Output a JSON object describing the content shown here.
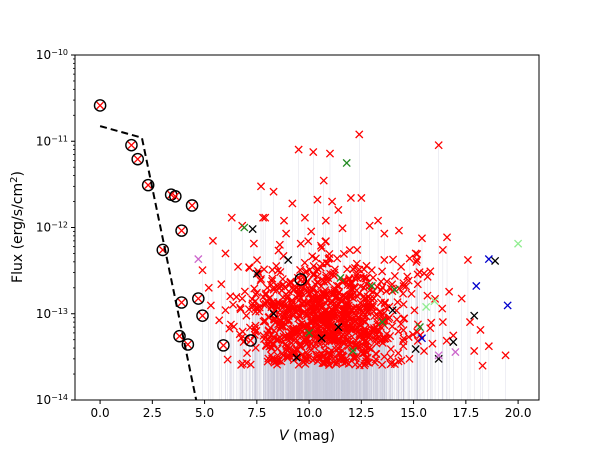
{
  "chart_data": {
    "type": "scatter",
    "xlabel_italic": "V",
    "xlabel_rest": " (mag)",
    "ylabel_main": "Flux (erg/s/cm",
    "ylabel_sup": "2",
    "ylabel_close": ")",
    "xlim": [
      -1.2,
      21.0
    ],
    "ylim": [
      1e-14,
      1e-10
    ],
    "yscale": "log",
    "grid": false,
    "x_ticks": [
      {
        "v": 0.0,
        "label": "0.0"
      },
      {
        "v": 2.5,
        "label": "2.5"
      },
      {
        "v": 5.0,
        "label": "5.0"
      },
      {
        "v": 7.5,
        "label": "7.5"
      },
      {
        "v": 10.0,
        "label": "10.0"
      },
      {
        "v": 12.5,
        "label": "12.5"
      },
      {
        "v": 15.0,
        "label": "15.0"
      },
      {
        "v": 17.5,
        "label": "17.5"
      },
      {
        "v": 20.0,
        "label": "20.0"
      }
    ],
    "y_ticks": [
      {
        "v": 1e-14,
        "base": "10",
        "exp": "−14"
      },
      {
        "v": 1e-13,
        "base": "10",
        "exp": "−13"
      },
      {
        "v": 1e-12,
        "base": "10",
        "exp": "−12"
      },
      {
        "v": 1e-11,
        "base": "10",
        "exp": "−11"
      },
      {
        "v": 1e-10,
        "base": "10",
        "exp": "−10"
      }
    ],
    "colors": {
      "red": "#ff0000",
      "black": "#000000",
      "darkgreen": "#228b22",
      "blue": "#0000cc",
      "violet": "#cc66cc",
      "lightgreen": "#90ee90",
      "errorbar": "#c8c8d8",
      "dashed": "#000000"
    },
    "dashed_line": [
      [
        0.0,
        1.5e-11
      ],
      [
        2.0,
        1.1e-11
      ],
      [
        4.6,
        1e-14
      ]
    ],
    "circled_points": [
      [
        0.0,
        2.6e-11
      ],
      [
        1.5,
        9e-12
      ],
      [
        1.8,
        6.2e-12
      ],
      [
        2.3,
        3.1e-12
      ],
      [
        3.4,
        2.4e-12
      ],
      [
        3.6,
        2.3e-12
      ],
      [
        4.4,
        1.8e-12
      ],
      [
        3.9,
        9.2e-13
      ],
      [
        3.0,
        5.5e-13
      ],
      [
        3.9,
        1.35e-13
      ],
      [
        4.7,
        1.5e-13
      ],
      [
        4.9,
        9.5e-14
      ],
      [
        3.8,
        5.5e-14
      ],
      [
        4.2,
        4.4e-14
      ],
      [
        5.9,
        4.3e-14
      ],
      [
        7.2,
        4.9e-14
      ],
      [
        9.6,
        2.5e-13
      ]
    ],
    "special_points": [
      {
        "c": "darkgreen",
        "x": 11.8,
        "y": 5.6e-12
      },
      {
        "c": "darkgreen",
        "x": 6.9,
        "y": 1e-12
      },
      {
        "c": "darkgreen",
        "x": 11.5,
        "y": 2.6e-13
      },
      {
        "c": "darkgreen",
        "x": 13.0,
        "y": 2.1e-13
      },
      {
        "c": "darkgreen",
        "x": 14.1,
        "y": 1.9e-13
      },
      {
        "c": "darkgreen",
        "x": 13.5,
        "y": 8e-14
      },
      {
        "c": "darkgreen",
        "x": 12.1,
        "y": 3.7e-14
      },
      {
        "c": "darkgreen",
        "x": 15.3,
        "y": 7e-14
      },
      {
        "c": "darkgreen",
        "x": 10.0,
        "y": 6e-14
      },
      {
        "c": "black",
        "x": 7.3,
        "y": 9.6e-13
      },
      {
        "c": "black",
        "x": 9.0,
        "y": 4.2e-13
      },
      {
        "c": "black",
        "x": 7.5,
        "y": 2.9e-13
      },
      {
        "c": "black",
        "x": 8.3,
        "y": 1e-13
      },
      {
        "c": "black",
        "x": 10.6,
        "y": 5.2e-14
      },
      {
        "c": "black",
        "x": 11.4,
        "y": 7e-14
      },
      {
        "c": "black",
        "x": 15.1,
        "y": 3.9e-14
      },
      {
        "c": "black",
        "x": 16.2,
        "y": 3e-14
      },
      {
        "c": "black",
        "x": 16.9,
        "y": 4.7e-14
      },
      {
        "c": "black",
        "x": 17.9,
        "y": 9.5e-14
      },
      {
        "c": "black",
        "x": 18.9,
        "y": 4.1e-13
      },
      {
        "c": "black",
        "x": 14.0,
        "y": 1.1e-13
      },
      {
        "c": "black",
        "x": 9.4,
        "y": 3.1e-14
      },
      {
        "c": "blue",
        "x": 18.6,
        "y": 4.3e-13
      },
      {
        "c": "blue",
        "x": 18.0,
        "y": 2.1e-13
      },
      {
        "c": "blue",
        "x": 19.5,
        "y": 1.25e-13
      },
      {
        "c": "blue",
        "x": 15.4,
        "y": 5.2e-14
      },
      {
        "c": "violet",
        "x": 4.7,
        "y": 4.3e-13
      },
      {
        "c": "violet",
        "x": 17.0,
        "y": 3.6e-14
      },
      {
        "c": "violet",
        "x": 16.2,
        "y": 3.3e-14
      },
      {
        "c": "lightgreen",
        "x": 20.0,
        "y": 6.5e-13
      },
      {
        "c": "lightgreen",
        "x": 16.0,
        "y": 1.4e-13
      },
      {
        "c": "lightgreen",
        "x": 15.6,
        "y": 1.2e-13
      }
    ],
    "red_points": [
      [
        12.4,
        1.2e-11
      ],
      [
        16.2,
        9e-12
      ],
      [
        9.5,
        8e-12
      ],
      [
        10.2,
        7.5e-12
      ],
      [
        11.0,
        7.2e-12
      ],
      [
        7.7,
        3e-12
      ],
      [
        8.3,
        2.6e-12
      ],
      [
        10.4,
        2.1e-12
      ],
      [
        11.1,
        2e-12
      ],
      [
        12.0,
        2.2e-12
      ],
      [
        12.5,
        2.2e-12
      ],
      [
        11.4,
        1.6e-12
      ],
      [
        6.3,
        1.3e-12
      ],
      [
        7.9,
        1.3e-12
      ],
      [
        8.8,
        1.2e-12
      ],
      [
        9.8,
        1.3e-12
      ],
      [
        10.8,
        1.2e-12
      ],
      [
        13.3,
        1.2e-12
      ],
      [
        12.9,
        1.05e-12
      ],
      [
        6.8,
        1.05e-12
      ],
      [
        14.3,
        9.2e-13
      ],
      [
        13.6,
        8.5e-13
      ],
      [
        11.6,
        9.8e-13
      ],
      [
        8.9,
        8.5e-13
      ],
      [
        10.1,
        9e-13
      ],
      [
        15.4,
        7.5e-13
      ],
      [
        16.6,
        7.7e-13
      ],
      [
        17.6,
        4.2e-13
      ],
      [
        16.4,
        5.5e-13
      ],
      [
        15.1,
        5e-13
      ],
      [
        5.4,
        7e-13
      ],
      [
        6.0,
        5e-13
      ],
      [
        5.2,
        2e-13
      ],
      [
        5.8,
        2.2e-13
      ],
      [
        4.9,
        3.2e-13
      ],
      [
        6.6,
        3.5e-13
      ],
      [
        8.6,
        6.3e-13
      ],
      [
        9.6,
        6.5e-13
      ],
      [
        10.6,
        5.8e-13
      ],
      [
        12.3,
        5.5e-13
      ],
      [
        13.6,
        4.2e-13
      ],
      [
        14.4,
        3.5e-13
      ],
      [
        15.8,
        3.1e-13
      ],
      [
        16.7,
        1.8e-13
      ],
      [
        17.3,
        1.5e-13
      ],
      [
        17.7,
        8e-14
      ],
      [
        18.2,
        6.5e-14
      ],
      [
        18.6,
        4.2e-14
      ],
      [
        19.4,
        3.3e-14
      ],
      [
        18.3,
        2.5e-14
      ],
      [
        17.9,
        3.7e-14
      ],
      [
        16.9,
        5.6e-14
      ],
      [
        16.4,
        8e-14
      ],
      [
        15.9,
        4.5e-14
      ],
      [
        15.5,
        3.7e-14
      ],
      [
        14.8,
        3e-14
      ],
      [
        13.9,
        2.6e-14
      ],
      [
        12.8,
        3.1e-14
      ],
      [
        11.6,
        2.9e-14
      ],
      [
        10.5,
        3.1e-14
      ],
      [
        9.4,
        3.8e-14
      ],
      [
        8.3,
        4.5e-14
      ],
      [
        7.4,
        5.7e-14
      ],
      [
        6.4,
        7.1e-14
      ],
      [
        5.7,
        8.4e-14
      ],
      [
        5.3,
        1.25e-13
      ],
      [
        6.8,
        1.5e-13
      ],
      [
        7.5,
        1.75e-13
      ],
      [
        8.0,
        2e-13
      ],
      [
        9.1,
        2.3e-13
      ],
      [
        10.4,
        2.7e-13
      ],
      [
        11.2,
        3e-13
      ],
      [
        12.1,
        3.3e-13
      ],
      [
        13.0,
        3.2e-13
      ],
      [
        14.7,
        2.7e-13
      ],
      [
        15.2,
        2.2e-13
      ],
      [
        14.9,
        1.7e-13
      ],
      [
        6.0,
        1.1e-13
      ],
      [
        7.0,
        9.5e-14
      ],
      [
        8.7,
        7.5e-14
      ],
      [
        9.8,
        6.8e-14
      ],
      [
        11.3,
        6.2e-14
      ],
      [
        12.5,
        5.8e-14
      ],
      [
        13.6,
        5.1e-14
      ],
      [
        14.5,
        4.8e-14
      ],
      [
        7.8,
        1.3e-12
      ],
      [
        9.2,
        1.9e-12
      ],
      [
        10.7,
        3.5e-12
      ],
      [
        8.3,
        1.9e-13
      ],
      [
        10.1,
        1.5e-13
      ],
      [
        12.8,
        1.3e-13
      ],
      [
        11.8,
        1.1e-13
      ],
      [
        9.9,
        9.5e-14
      ],
      [
        13.3,
        9.3e-14
      ],
      [
        14.2,
        8.6e-14
      ]
    ],
    "cloud_seed": 20240601,
    "cloud_count": 900
  }
}
